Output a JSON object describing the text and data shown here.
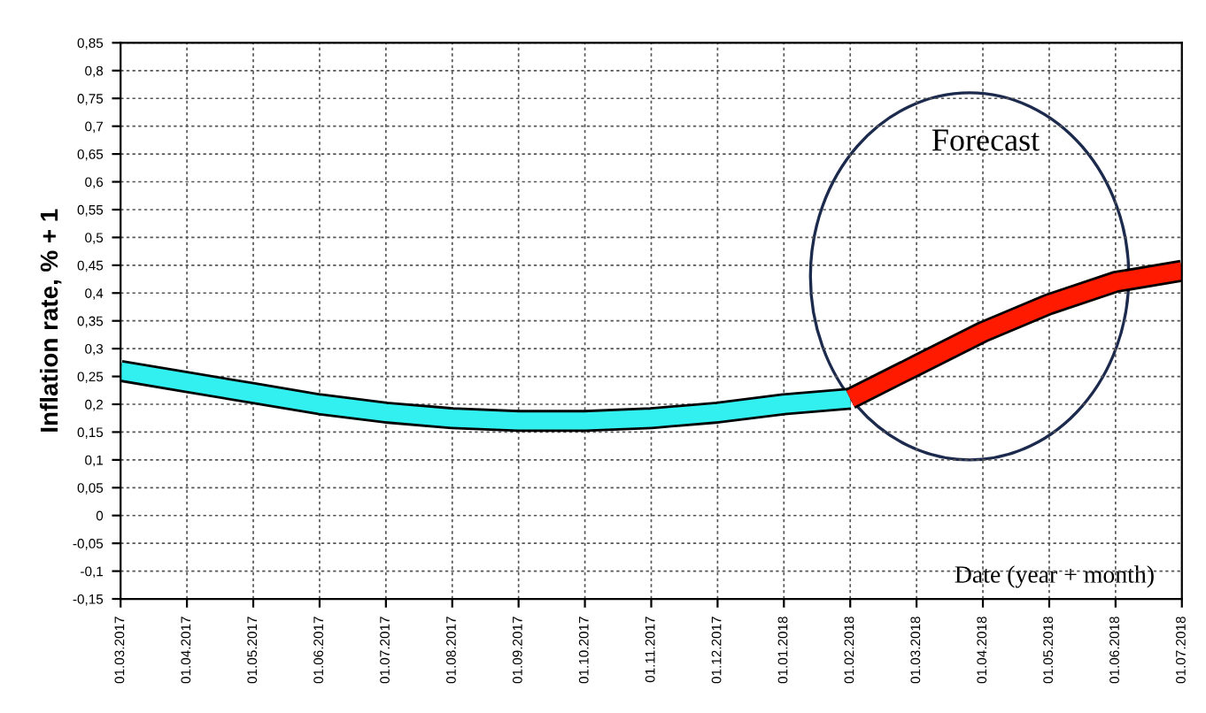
{
  "chart_data": {
    "type": "line",
    "xlabel": "Date (year + month)",
    "ylabel": "Inflation rate, % + 1",
    "categories": [
      "01.03.2017",
      "01.04.2017",
      "01.05.2017",
      "01.06.2017",
      "01.07.2017",
      "01.08.2017",
      "01.09.2017",
      "01.10.2017",
      "01.11.2017",
      "01.12.2017",
      "01.01.2018",
      "01.02.2018",
      "01.03.2018",
      "01.04.2018",
      "01.05.2018",
      "01.06.2018",
      "01.07.2018"
    ],
    "series": [
      {
        "color": "#33f0f0",
        "values": [
          0.26,
          0.24,
          0.22,
          0.2,
          0.185,
          0.175,
          0.17,
          0.17,
          0.175,
          0.185,
          0.2,
          0.21,
          null,
          null,
          null,
          null,
          null
        ]
      },
      {
        "color": "#ff1a00",
        "values": [
          null,
          null,
          null,
          null,
          null,
          null,
          null,
          null,
          null,
          null,
          null,
          0.21,
          0.27,
          0.33,
          0.38,
          0.42,
          0.44
        ]
      }
    ],
    "ylim": [
      -0.15,
      0.85
    ],
    "yticks": [
      {
        "value": -0.15,
        "label": "-0,15"
      },
      {
        "value": -0.1,
        "label": "-0,1"
      },
      {
        "value": -0.05,
        "label": "-0,05"
      },
      0,
      {
        "value": 0.05,
        "label": "0,05"
      },
      {
        "value": 0.1,
        "label": "0,1"
      },
      {
        "value": 0.15,
        "label": "0,15"
      },
      {
        "value": 0.2,
        "label": "0,2"
      },
      {
        "value": 0.25,
        "label": "0,25"
      },
      {
        "value": 0.3,
        "label": "0,3"
      },
      {
        "value": 0.35,
        "label": "0,35"
      },
      {
        "value": 0.4,
        "label": "0,4"
      },
      {
        "value": 0.45,
        "label": "0,45"
      },
      {
        "value": 0.5,
        "label": "0,5"
      },
      {
        "value": 0.55,
        "label": "0,55"
      },
      {
        "value": 0.6,
        "label": "0,6"
      },
      {
        "value": 0.65,
        "label": "0,65"
      },
      {
        "value": 0.7,
        "label": "0,7"
      },
      {
        "value": 0.75,
        "label": "0,75"
      },
      {
        "value": 0.8,
        "label": "0,8"
      },
      {
        "value": 0.85,
        "label": "0,85"
      }
    ],
    "grid": true,
    "line_style": "solid",
    "marker": "none",
    "annotations": [
      "Forecast"
    ]
  }
}
